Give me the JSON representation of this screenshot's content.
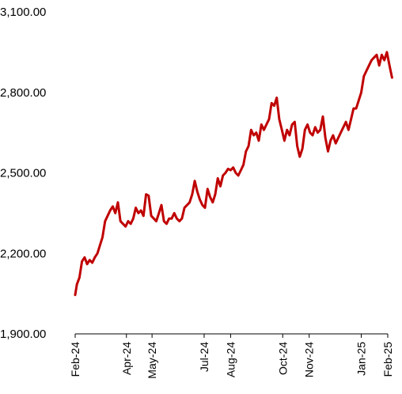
{
  "chart_data": {
    "type": "line",
    "title": "",
    "xlabel": "",
    "ylabel": "",
    "ylim": [
      1900,
      3100
    ],
    "y_ticks": [
      1900,
      2200,
      2500,
      2800,
      3100
    ],
    "y_tick_labels": [
      "1,900.00",
      "2,200.00",
      "2,500.00",
      "2,800.00",
      "3,100.00"
    ],
    "x_tick_labels": [
      "Feb-24",
      "Apr-24",
      "May-24",
      "Jul-24",
      "Aug-24",
      "Oct-24",
      "Nov-24",
      "Jan-25",
      "Feb-25"
    ],
    "x_tick_dates": [
      "2024-02-01",
      "2024-04-01",
      "2024-05-01",
      "2024-07-01",
      "2024-08-01",
      "2024-10-01",
      "2024-11-01",
      "2025-01-01",
      "2025-02-01"
    ],
    "grid": false,
    "legend": "none",
    "line_color": "#C00000",
    "series": [
      {
        "x": [
          "2024-02-01",
          "2024-02-03",
          "2024-02-06",
          "2024-02-09",
          "2024-02-12",
          "2024-02-15",
          "2024-02-18",
          "2024-02-21",
          "2024-02-24",
          "2024-02-27",
          "2024-03-01",
          "2024-03-04",
          "2024-03-07",
          "2024-03-10",
          "2024-03-13",
          "2024-03-16",
          "2024-03-19",
          "2024-03-22",
          "2024-03-25",
          "2024-03-28",
          "2024-03-31",
          "2024-04-03",
          "2024-04-06",
          "2024-04-09",
          "2024-04-12",
          "2024-04-15",
          "2024-04-18",
          "2024-04-21",
          "2024-04-24",
          "2024-04-27",
          "2024-04-30",
          "2024-05-03",
          "2024-05-06",
          "2024-05-09",
          "2024-05-12",
          "2024-05-15",
          "2024-05-18",
          "2024-05-21",
          "2024-05-24",
          "2024-05-27",
          "2024-05-30",
          "2024-06-02",
          "2024-06-05",
          "2024-06-08",
          "2024-06-11",
          "2024-06-14",
          "2024-06-17",
          "2024-06-20",
          "2024-06-23",
          "2024-06-26",
          "2024-06-29",
          "2024-07-02",
          "2024-07-05",
          "2024-07-08",
          "2024-07-11",
          "2024-07-14",
          "2024-07-17",
          "2024-07-20",
          "2024-07-23",
          "2024-07-26",
          "2024-07-29",
          "2024-08-01",
          "2024-08-04",
          "2024-08-07",
          "2024-08-10",
          "2024-08-13",
          "2024-08-16",
          "2024-08-19",
          "2024-08-22",
          "2024-08-25",
          "2024-08-28",
          "2024-08-31",
          "2024-09-03",
          "2024-09-06",
          "2024-09-09",
          "2024-09-12",
          "2024-09-15",
          "2024-09-18",
          "2024-09-21",
          "2024-09-24",
          "2024-09-27",
          "2024-09-30",
          "2024-10-03",
          "2024-10-06",
          "2024-10-09",
          "2024-10-12",
          "2024-10-15",
          "2024-10-18",
          "2024-10-21",
          "2024-10-24",
          "2024-10-27",
          "2024-10-30",
          "2024-11-02",
          "2024-11-05",
          "2024-11-08",
          "2024-11-11",
          "2024-11-14",
          "2024-11-17",
          "2024-11-20",
          "2024-11-23",
          "2024-11-26",
          "2024-11-29",
          "2024-12-02",
          "2024-12-05",
          "2024-12-08",
          "2024-12-11",
          "2024-12-14",
          "2024-12-17",
          "2024-12-20",
          "2024-12-23",
          "2024-12-26",
          "2024-12-29",
          "2025-01-01",
          "2025-01-04",
          "2025-01-07",
          "2025-01-10",
          "2025-01-13",
          "2025-01-16",
          "2025-01-19",
          "2025-01-22",
          "2025-01-25",
          "2025-01-28",
          "2025-01-31",
          "2025-02-03",
          "2025-02-06"
        ],
        "values": [
          2045,
          2085,
          2110,
          2170,
          2185,
          2160,
          2175,
          2165,
          2185,
          2200,
          2230,
          2260,
          2320,
          2340,
          2360,
          2375,
          2350,
          2390,
          2320,
          2310,
          2300,
          2320,
          2310,
          2330,
          2370,
          2350,
          2360,
          2340,
          2420,
          2415,
          2340,
          2330,
          2320,
          2350,
          2380,
          2320,
          2310,
          2330,
          2330,
          2350,
          2330,
          2320,
          2330,
          2370,
          2380,
          2390,
          2420,
          2470,
          2430,
          2400,
          2380,
          2370,
          2440,
          2410,
          2390,
          2420,
          2480,
          2450,
          2490,
          2500,
          2515,
          2510,
          2520,
          2500,
          2490,
          2510,
          2530,
          2580,
          2600,
          2660,
          2640,
          2650,
          2620,
          2680,
          2660,
          2680,
          2700,
          2760,
          2750,
          2780,
          2700,
          2660,
          2620,
          2660,
          2640,
          2680,
          2690,
          2600,
          2560,
          2590,
          2660,
          2680,
          2650,
          2640,
          2670,
          2650,
          2660,
          2710,
          2630,
          2580,
          2620,
          2640,
          2610,
          2630,
          2650,
          2670,
          2690,
          2660,
          2700,
          2740,
          2740,
          2770,
          2800,
          2860,
          2880,
          2900,
          2920,
          2930,
          2940,
          2900,
          2940,
          2920,
          2950,
          2900,
          2855
        ]
      }
    ]
  }
}
